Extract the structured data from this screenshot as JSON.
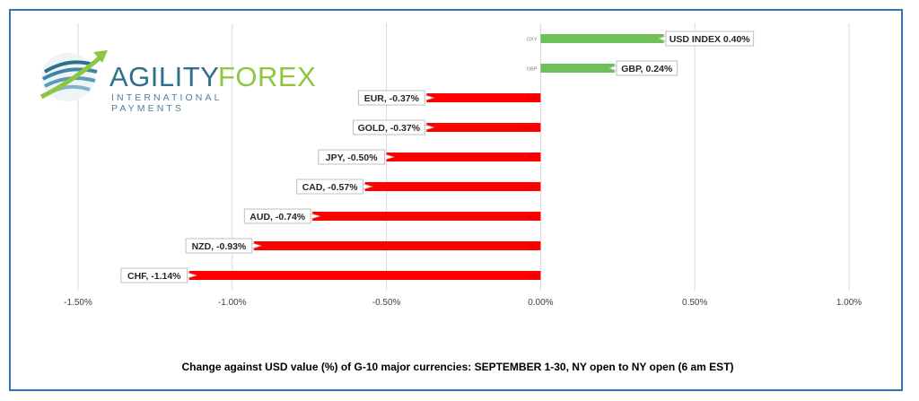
{
  "logo": {
    "word1": "AGILITY",
    "word2": "FOREX",
    "subtitle": "INTERNATIONAL PAYMENTS",
    "icon": "globe-swoosh-icon"
  },
  "caption": "Change against  USD value (%)  of  G-10 major currencies: SEPTEMBER 1-30, NY open to NY open  (6 am EST)",
  "colors": {
    "positive": "#70c05a",
    "negative": "#ff0000",
    "grid": "#d9d9d9",
    "label_border": "#bfbfbf"
  },
  "chart_data": {
    "type": "bar",
    "orientation": "horizontal",
    "categories": [
      "DXY",
      "GBP",
      "EUR",
      "GOLD",
      "JPY",
      "CAD",
      "AUD",
      "NZD",
      "CHF"
    ],
    "values": [
      0.4,
      0.24,
      -0.37,
      -0.37,
      -0.5,
      -0.57,
      -0.74,
      -0.93,
      -1.14
    ],
    "data_labels": [
      "USD INDEX 0.40%",
      "GBP, 0.24%",
      "EUR, -0.37%",
      "GOLD, -0.37%",
      "JPY, -0.50%",
      "CAD, -0.57%",
      "AUD, -0.74%",
      "NZD, -0.93%",
      "CHF, -1.14%"
    ],
    "xlim": [
      -1.5,
      1.0
    ],
    "xticks": [
      -1.5,
      -1.0,
      -0.5,
      0.0,
      0.5,
      1.0
    ],
    "xtick_labels": [
      "-1.50%",
      "-1.00%",
      "-0.50%",
      "0.00%",
      "0.50%",
      "1.00%"
    ],
    "grid": true,
    "legend": "none"
  }
}
